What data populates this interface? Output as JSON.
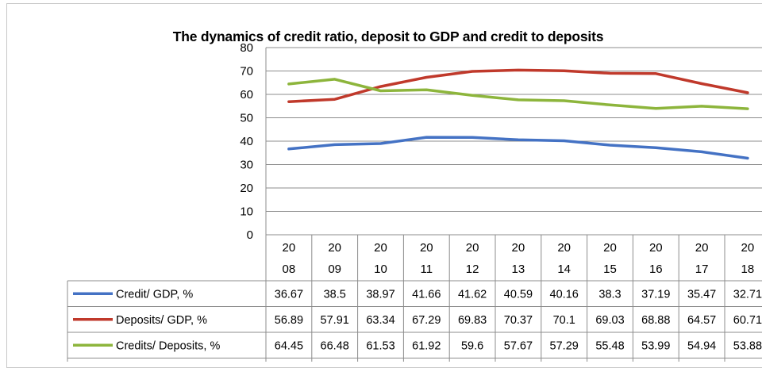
{
  "chart_data": {
    "type": "line",
    "title": "The dynamics of credit ratio, deposit to GDP and credit to deposits",
    "categories": [
      [
        "20",
        "08"
      ],
      [
        "20",
        "09"
      ],
      [
        "20",
        "10"
      ],
      [
        "20",
        "11"
      ],
      [
        "20",
        "12"
      ],
      [
        "20",
        "13"
      ],
      [
        "20",
        "14"
      ],
      [
        "20",
        "15"
      ],
      [
        "20",
        "16"
      ],
      [
        "20",
        "17"
      ],
      [
        "20",
        "18"
      ]
    ],
    "y_ticks": [
      "0",
      "10",
      "20",
      "30",
      "40",
      "50",
      "60",
      "70",
      "80"
    ],
    "ylim": [
      0,
      80
    ],
    "grid": true,
    "legend": "data-table",
    "series": [
      {
        "name": "Credit/ GDP, %",
        "color": "#4472c4",
        "values": [
          36.67,
          38.5,
          38.97,
          41.66,
          41.62,
          40.59,
          40.16,
          38.3,
          37.19,
          35.47,
          32.71
        ],
        "labels": [
          "36.67",
          "38.5",
          "38.97",
          "41.66",
          "41.62",
          "40.59",
          "40.16",
          "38.3",
          "37.19",
          "35.47",
          "32.71"
        ]
      },
      {
        "name": "Deposits/ GDP, %",
        "color": "#c0392b",
        "values": [
          56.89,
          57.91,
          63.34,
          67.29,
          69.83,
          70.37,
          70.1,
          69.03,
          68.88,
          64.57,
          60.71
        ],
        "labels": [
          "56.89",
          "57.91",
          "63.34",
          "67.29",
          "69.83",
          "70.37",
          "70.1",
          "69.03",
          "68.88",
          "64.57",
          "60.71"
        ]
      },
      {
        "name": "Credits/ Deposits,  %",
        "color": "#8db53c",
        "values": [
          64.45,
          66.48,
          61.53,
          61.92,
          59.6,
          57.67,
          57.29,
          55.48,
          53.99,
          54.94,
          53.88
        ],
        "labels": [
          "64.45",
          "66.48",
          "61.53",
          "61.92",
          "59.6",
          "57.67",
          "57.29",
          "55.48",
          "53.99",
          "54.94",
          "53.88"
        ]
      }
    ]
  }
}
